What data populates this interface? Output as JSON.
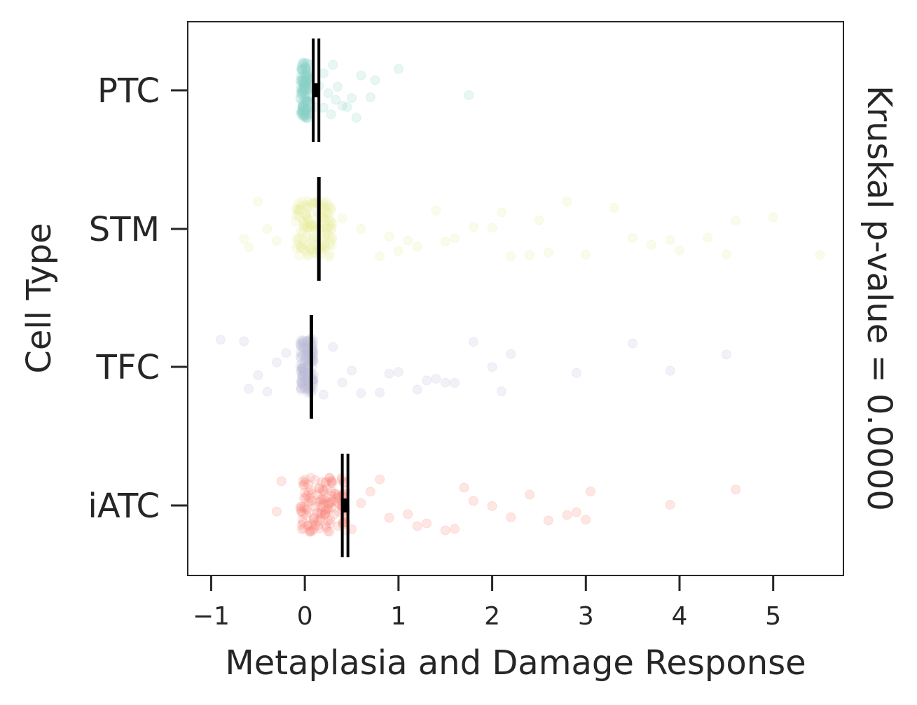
{
  "chart_data": {
    "type": "strip",
    "orientation": "horizontal",
    "title": "",
    "xlabel": "Metaplasia and Damage Response",
    "ylabel": "Cell Type",
    "right_label": "Kruskal p-value = 0.0000",
    "xlim": [
      -1.25,
      5.75
    ],
    "x_ticks": [
      -1,
      0,
      1,
      2,
      3,
      4,
      5
    ],
    "x_tick_labels": [
      "−1",
      "0",
      "1",
      "2",
      "3",
      "4",
      "5"
    ],
    "categories": [
      "PTC",
      "STM",
      "TFC",
      "iATC"
    ],
    "grid": false,
    "series": [
      {
        "name": "PTC",
        "color": "#8dd3c7",
        "median": 0.12,
        "ci": [
          0.09,
          0.15
        ],
        "dense_range": [
          -0.05,
          0.05
        ],
        "points": [
          0.2,
          0.35,
          0.5,
          0.7,
          0.75,
          1.0,
          1.75,
          0.25,
          0.4,
          0.15,
          0.3,
          0.55,
          0.1,
          0.45,
          0.6,
          0.2,
          0.33,
          0.28
        ]
      },
      {
        "name": "STM",
        "color": "#e8ec9a",
        "median": 0.15,
        "ci": [
          0.15,
          0.15
        ],
        "dense_range": [
          -0.1,
          0.3
        ],
        "points": [
          -0.65,
          -0.6,
          -0.4,
          -0.3,
          -0.5,
          0.4,
          0.6,
          0.8,
          1.0,
          1.2,
          1.4,
          1.6,
          1.8,
          2.0,
          2.2,
          2.4,
          2.6,
          2.8,
          3.0,
          3.3,
          3.5,
          3.7,
          4.0,
          4.3,
          4.6,
          5.0,
          5.5,
          0.9,
          1.1,
          1.5,
          2.1,
          2.5,
          3.9,
          4.5
        ]
      },
      {
        "name": "TFC",
        "color": "#bebada",
        "median": 0.07,
        "ci": [
          0.07,
          0.07
        ],
        "dense_range": [
          -0.05,
          0.1
        ],
        "points": [
          -0.9,
          -0.65,
          -0.6,
          -0.5,
          -0.3,
          -0.2,
          0.2,
          0.4,
          0.6,
          0.8,
          1.0,
          1.2,
          1.3,
          1.5,
          1.6,
          1.8,
          2.0,
          2.2,
          2.9,
          3.5,
          3.9,
          4.5,
          -0.4,
          0.3,
          0.5,
          0.9,
          1.4,
          2.1
        ]
      },
      {
        "name": "iATC",
        "color": "#fb8072",
        "median": 0.43,
        "ci": [
          0.4,
          0.46
        ],
        "dense_range": [
          -0.05,
          0.45
        ],
        "points": [
          -0.3,
          -0.25,
          0.5,
          0.7,
          0.9,
          1.1,
          1.3,
          1.5,
          1.7,
          1.8,
          2.0,
          2.2,
          2.4,
          2.6,
          2.9,
          3.0,
          3.9,
          4.6,
          0.6,
          0.8,
          1.2,
          1.6,
          2.8,
          3.05
        ]
      }
    ]
  }
}
